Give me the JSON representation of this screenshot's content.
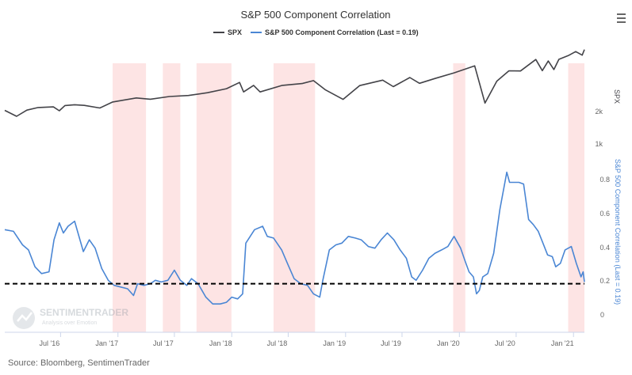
{
  "chart_data": {
    "type": "line",
    "title": "S&P 500 Component Correlation",
    "source": "Source: Bloomberg, SentimenTrader",
    "watermark": {
      "brand": "SENTIMENTRADER",
      "tagline": "Analysis over Emotion"
    },
    "x_tick_labels": [
      "Jul '16",
      "Jan '17",
      "Jul '17",
      "Jan '18",
      "Jul '18",
      "Jan '19",
      "Jul '19",
      "Jan '20",
      "Jul '20",
      "Jan '21"
    ],
    "x_tick_dates": [
      "2016-07-01",
      "2017-01-01",
      "2017-07-01",
      "2018-01-01",
      "2018-07-01",
      "2019-01-01",
      "2019-07-01",
      "2020-01-01",
      "2020-07-01",
      "2021-01-01"
    ],
    "xlim": [
      "2016-01-04",
      "2021-02-05"
    ],
    "shaded_periods": [
      [
        "2016-12-15",
        "2017-04-01"
      ],
      [
        "2017-05-25",
        "2017-07-20"
      ],
      [
        "2017-09-10",
        "2017-12-31"
      ],
      [
        "2018-05-15",
        "2018-09-25"
      ],
      [
        "2019-12-12",
        "2020-01-20"
      ],
      [
        "2020-12-15",
        "2021-02-05"
      ]
    ],
    "shade_color": "#fde4e4",
    "series": [
      {
        "name": "SPX",
        "axis": "upper",
        "color": "#434348",
        "axis_title": "SPX",
        "tick_labels": [
          "1k",
          "2k"
        ],
        "x": [
          "2016-01-04",
          "2016-02-11",
          "2016-03-15",
          "2016-04-20",
          "2016-06-08",
          "2016-06-27",
          "2016-07-15",
          "2016-08-15",
          "2016-09-15",
          "2016-11-04",
          "2016-12-15",
          "2017-03-01",
          "2017-04-15",
          "2017-06-15",
          "2017-08-15",
          "2017-10-15",
          "2017-12-15",
          "2018-01-26",
          "2018-02-08",
          "2018-03-12",
          "2018-04-02",
          "2018-06-12",
          "2018-08-15",
          "2018-09-20",
          "2018-10-29",
          "2018-12-24",
          "2019-02-15",
          "2019-04-30",
          "2019-06-03",
          "2019-07-26",
          "2019-08-26",
          "2019-10-15",
          "2019-12-15",
          "2020-02-19",
          "2020-03-23",
          "2020-04-30",
          "2020-06-08",
          "2020-07-15",
          "2020-09-02",
          "2020-09-23",
          "2020-10-12",
          "2020-10-30",
          "2020-11-15",
          "2020-12-15",
          "2021-01-08",
          "2021-01-29",
          "2021-02-05"
        ],
        "values": [
          2012,
          1829,
          2020,
          2100,
          2120,
          2000,
          2160,
          2185,
          2165,
          2085,
          2270,
          2395,
          2355,
          2440,
          2470,
          2555,
          2680,
          2872,
          2581,
          2783,
          2581,
          2782,
          2840,
          2930,
          2641,
          2351,
          2775,
          2945,
          2744,
          3025,
          2847,
          2995,
          3168,
          3386,
          2237,
          2912,
          3232,
          3226,
          3580,
          3237,
          3535,
          3270,
          3585,
          3700,
          3824,
          3714,
          3886
        ]
      },
      {
        "name": "S&P 500 Component Correlation (Last = 0.19)",
        "axis": "lower",
        "color": "#4a86d4",
        "axis_title": "S&P 500 Component Correlation (Last = 0.19)",
        "tick_labels": [
          "0",
          "0.2",
          "0.4",
          "0.6",
          "0.8"
        ],
        "ylim": [
          0,
          0.9
        ],
        "x": [
          "2016-01-04",
          "2016-02-01",
          "2016-03-01",
          "2016-03-20",
          "2016-04-10",
          "2016-05-01",
          "2016-05-25",
          "2016-06-10",
          "2016-06-27",
          "2016-07-10",
          "2016-07-25",
          "2016-08-15",
          "2016-09-12",
          "2016-10-01",
          "2016-10-20",
          "2016-11-10",
          "2016-12-01",
          "2016-12-20",
          "2017-01-10",
          "2017-02-01",
          "2017-02-20",
          "2017-03-05",
          "2017-03-25",
          "2017-04-15",
          "2017-05-01",
          "2017-05-20",
          "2017-06-10",
          "2017-07-01",
          "2017-07-20",
          "2017-08-10",
          "2017-08-25",
          "2017-09-15",
          "2017-10-10",
          "2017-11-01",
          "2017-11-25",
          "2017-12-15",
          "2018-01-01",
          "2018-01-20",
          "2018-02-05",
          "2018-02-15",
          "2018-03-15",
          "2018-04-10",
          "2018-04-25",
          "2018-05-15",
          "2018-06-10",
          "2018-07-01",
          "2018-07-20",
          "2018-08-10",
          "2018-09-01",
          "2018-09-20",
          "2018-10-10",
          "2018-10-20",
          "2018-11-10",
          "2018-12-01",
          "2018-12-20",
          "2019-01-10",
          "2019-02-01",
          "2019-02-20",
          "2019-03-15",
          "2019-04-05",
          "2019-04-25",
          "2019-05-15",
          "2019-06-05",
          "2019-06-25",
          "2019-07-15",
          "2019-08-01",
          "2019-08-15",
          "2019-09-05",
          "2019-09-25",
          "2019-10-15",
          "2019-11-05",
          "2019-11-25",
          "2019-12-15",
          "2020-01-05",
          "2020-01-20",
          "2020-02-01",
          "2020-02-15",
          "2020-02-25",
          "2020-03-05",
          "2020-03-16",
          "2020-04-01",
          "2020-04-20",
          "2020-05-10",
          "2020-06-01",
          "2020-06-10",
          "2020-06-25",
          "2020-07-10",
          "2020-07-25",
          "2020-08-10",
          "2020-08-25",
          "2020-09-10",
          "2020-09-25",
          "2020-10-10",
          "2020-10-25",
          "2020-11-05",
          "2020-11-20",
          "2020-12-05",
          "2020-12-25",
          "2021-01-10",
          "2021-01-25",
          "2021-02-01",
          "2021-02-05"
        ],
        "values": [
          0.5,
          0.49,
          0.41,
          0.38,
          0.28,
          0.24,
          0.25,
          0.44,
          0.54,
          0.48,
          0.52,
          0.55,
          0.37,
          0.44,
          0.39,
          0.27,
          0.2,
          0.17,
          0.16,
          0.15,
          0.11,
          0.18,
          0.17,
          0.18,
          0.2,
          0.19,
          0.2,
          0.26,
          0.2,
          0.17,
          0.21,
          0.18,
          0.1,
          0.06,
          0.06,
          0.07,
          0.1,
          0.09,
          0.12,
          0.42,
          0.5,
          0.52,
          0.46,
          0.45,
          0.38,
          0.29,
          0.21,
          0.18,
          0.17,
          0.12,
          0.1,
          0.2,
          0.38,
          0.41,
          0.42,
          0.46,
          0.45,
          0.44,
          0.4,
          0.39,
          0.44,
          0.48,
          0.44,
          0.38,
          0.33,
          0.22,
          0.2,
          0.26,
          0.33,
          0.36,
          0.38,
          0.4,
          0.46,
          0.39,
          0.31,
          0.25,
          0.22,
          0.12,
          0.14,
          0.22,
          0.24,
          0.36,
          0.62,
          0.84,
          0.78,
          0.78,
          0.78,
          0.77,
          0.56,
          0.53,
          0.49,
          0.42,
          0.35,
          0.34,
          0.28,
          0.3,
          0.38,
          0.4,
          0.3,
          0.22,
          0.25,
          0.19
        ]
      }
    ],
    "reference_line": {
      "value": 0.18,
      "style": "dashed",
      "color": "#000000"
    },
    "legend_position": "top-center",
    "grid": false
  }
}
